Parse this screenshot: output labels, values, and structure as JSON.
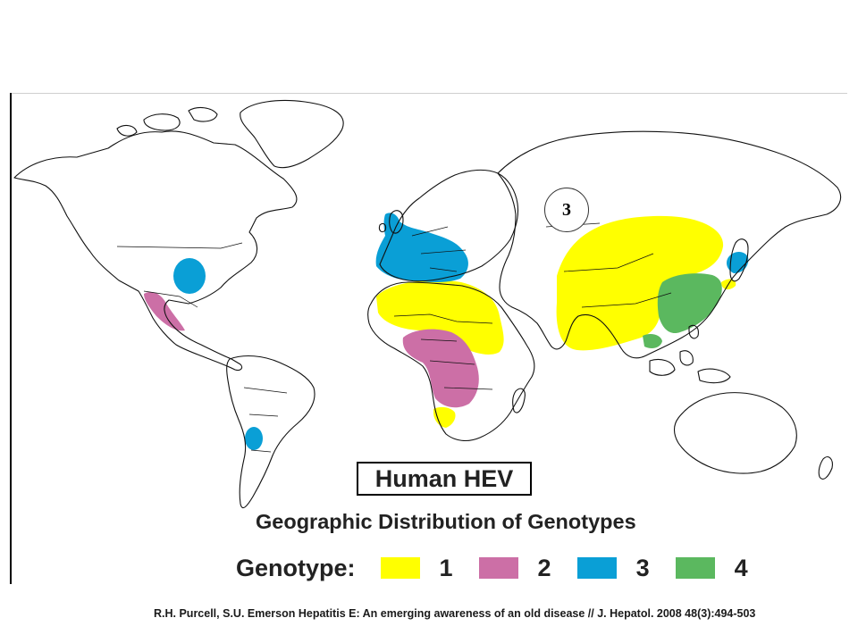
{
  "map": {
    "badge_label": "3",
    "title": "Human HEV",
    "subtitle": "Geographic Distribution of Genotypes",
    "legend": {
      "label": "Genotype:",
      "items": [
        {
          "label": "1",
          "color": "#ffff00"
        },
        {
          "label": "2",
          "color": "#cc6fa6"
        },
        {
          "label": "3",
          "color": "#0a9fd6"
        },
        {
          "label": "4",
          "color": "#5bb85f"
        }
      ]
    }
  },
  "citation": "R.H. Purcell, S.U. Emerson Hepatitis E: An emerging awareness of an old disease // J. Hepatol. 2008 48(3):494-503"
}
